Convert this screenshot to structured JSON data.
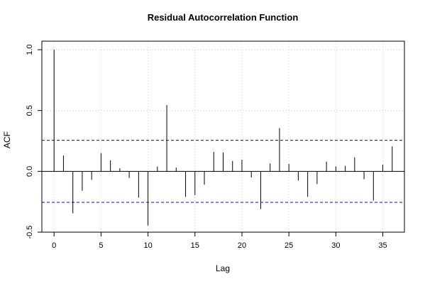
{
  "chart_data": {
    "type": "bar",
    "title": "Residual Autocorrelation Function",
    "xlabel": "Lag",
    "ylabel": "ACF",
    "xlim": [
      -1.3,
      37.3
    ],
    "ylim": [
      -0.5,
      1.07
    ],
    "x_ticks": [
      0,
      5,
      10,
      15,
      20,
      25,
      30,
      35
    ],
    "x_tick_labels": [
      "0",
      "5",
      "10",
      "15",
      "20",
      "25",
      "30",
      "35"
    ],
    "y_ticks": [
      -0.5,
      0.0,
      0.5,
      1.0
    ],
    "y_tick_labels": [
      "-0.5",
      "0.0",
      "0.5",
      "1.0"
    ],
    "grid": true,
    "confidence_band": 0.255,
    "colors": {
      "bars": "#000000",
      "confidence": "#0000ff",
      "grid": "#d3d3d3",
      "zero_line": "#000000"
    },
    "series": [
      {
        "lags": [
          0,
          1,
          2,
          3,
          4,
          5,
          6,
          7,
          8,
          9,
          10,
          11,
          12,
          13,
          14,
          15,
          16,
          17,
          18,
          19,
          20,
          21,
          22,
          23,
          24,
          25,
          26,
          27,
          28,
          29,
          30,
          31,
          32,
          33,
          34,
          35,
          36
        ],
        "values": [
          1.0,
          0.13,
          -0.345,
          -0.16,
          -0.07,
          0.15,
          0.09,
          0.025,
          -0.055,
          -0.215,
          -0.445,
          0.04,
          0.545,
          0.03,
          -0.21,
          -0.195,
          -0.11,
          0.16,
          0.155,
          0.085,
          0.095,
          -0.05,
          -0.31,
          0.065,
          0.355,
          0.06,
          -0.075,
          -0.21,
          -0.105,
          0.08,
          0.04,
          0.045,
          0.115,
          -0.065,
          -0.24,
          0.055,
          0.205
        ]
      }
    ]
  }
}
